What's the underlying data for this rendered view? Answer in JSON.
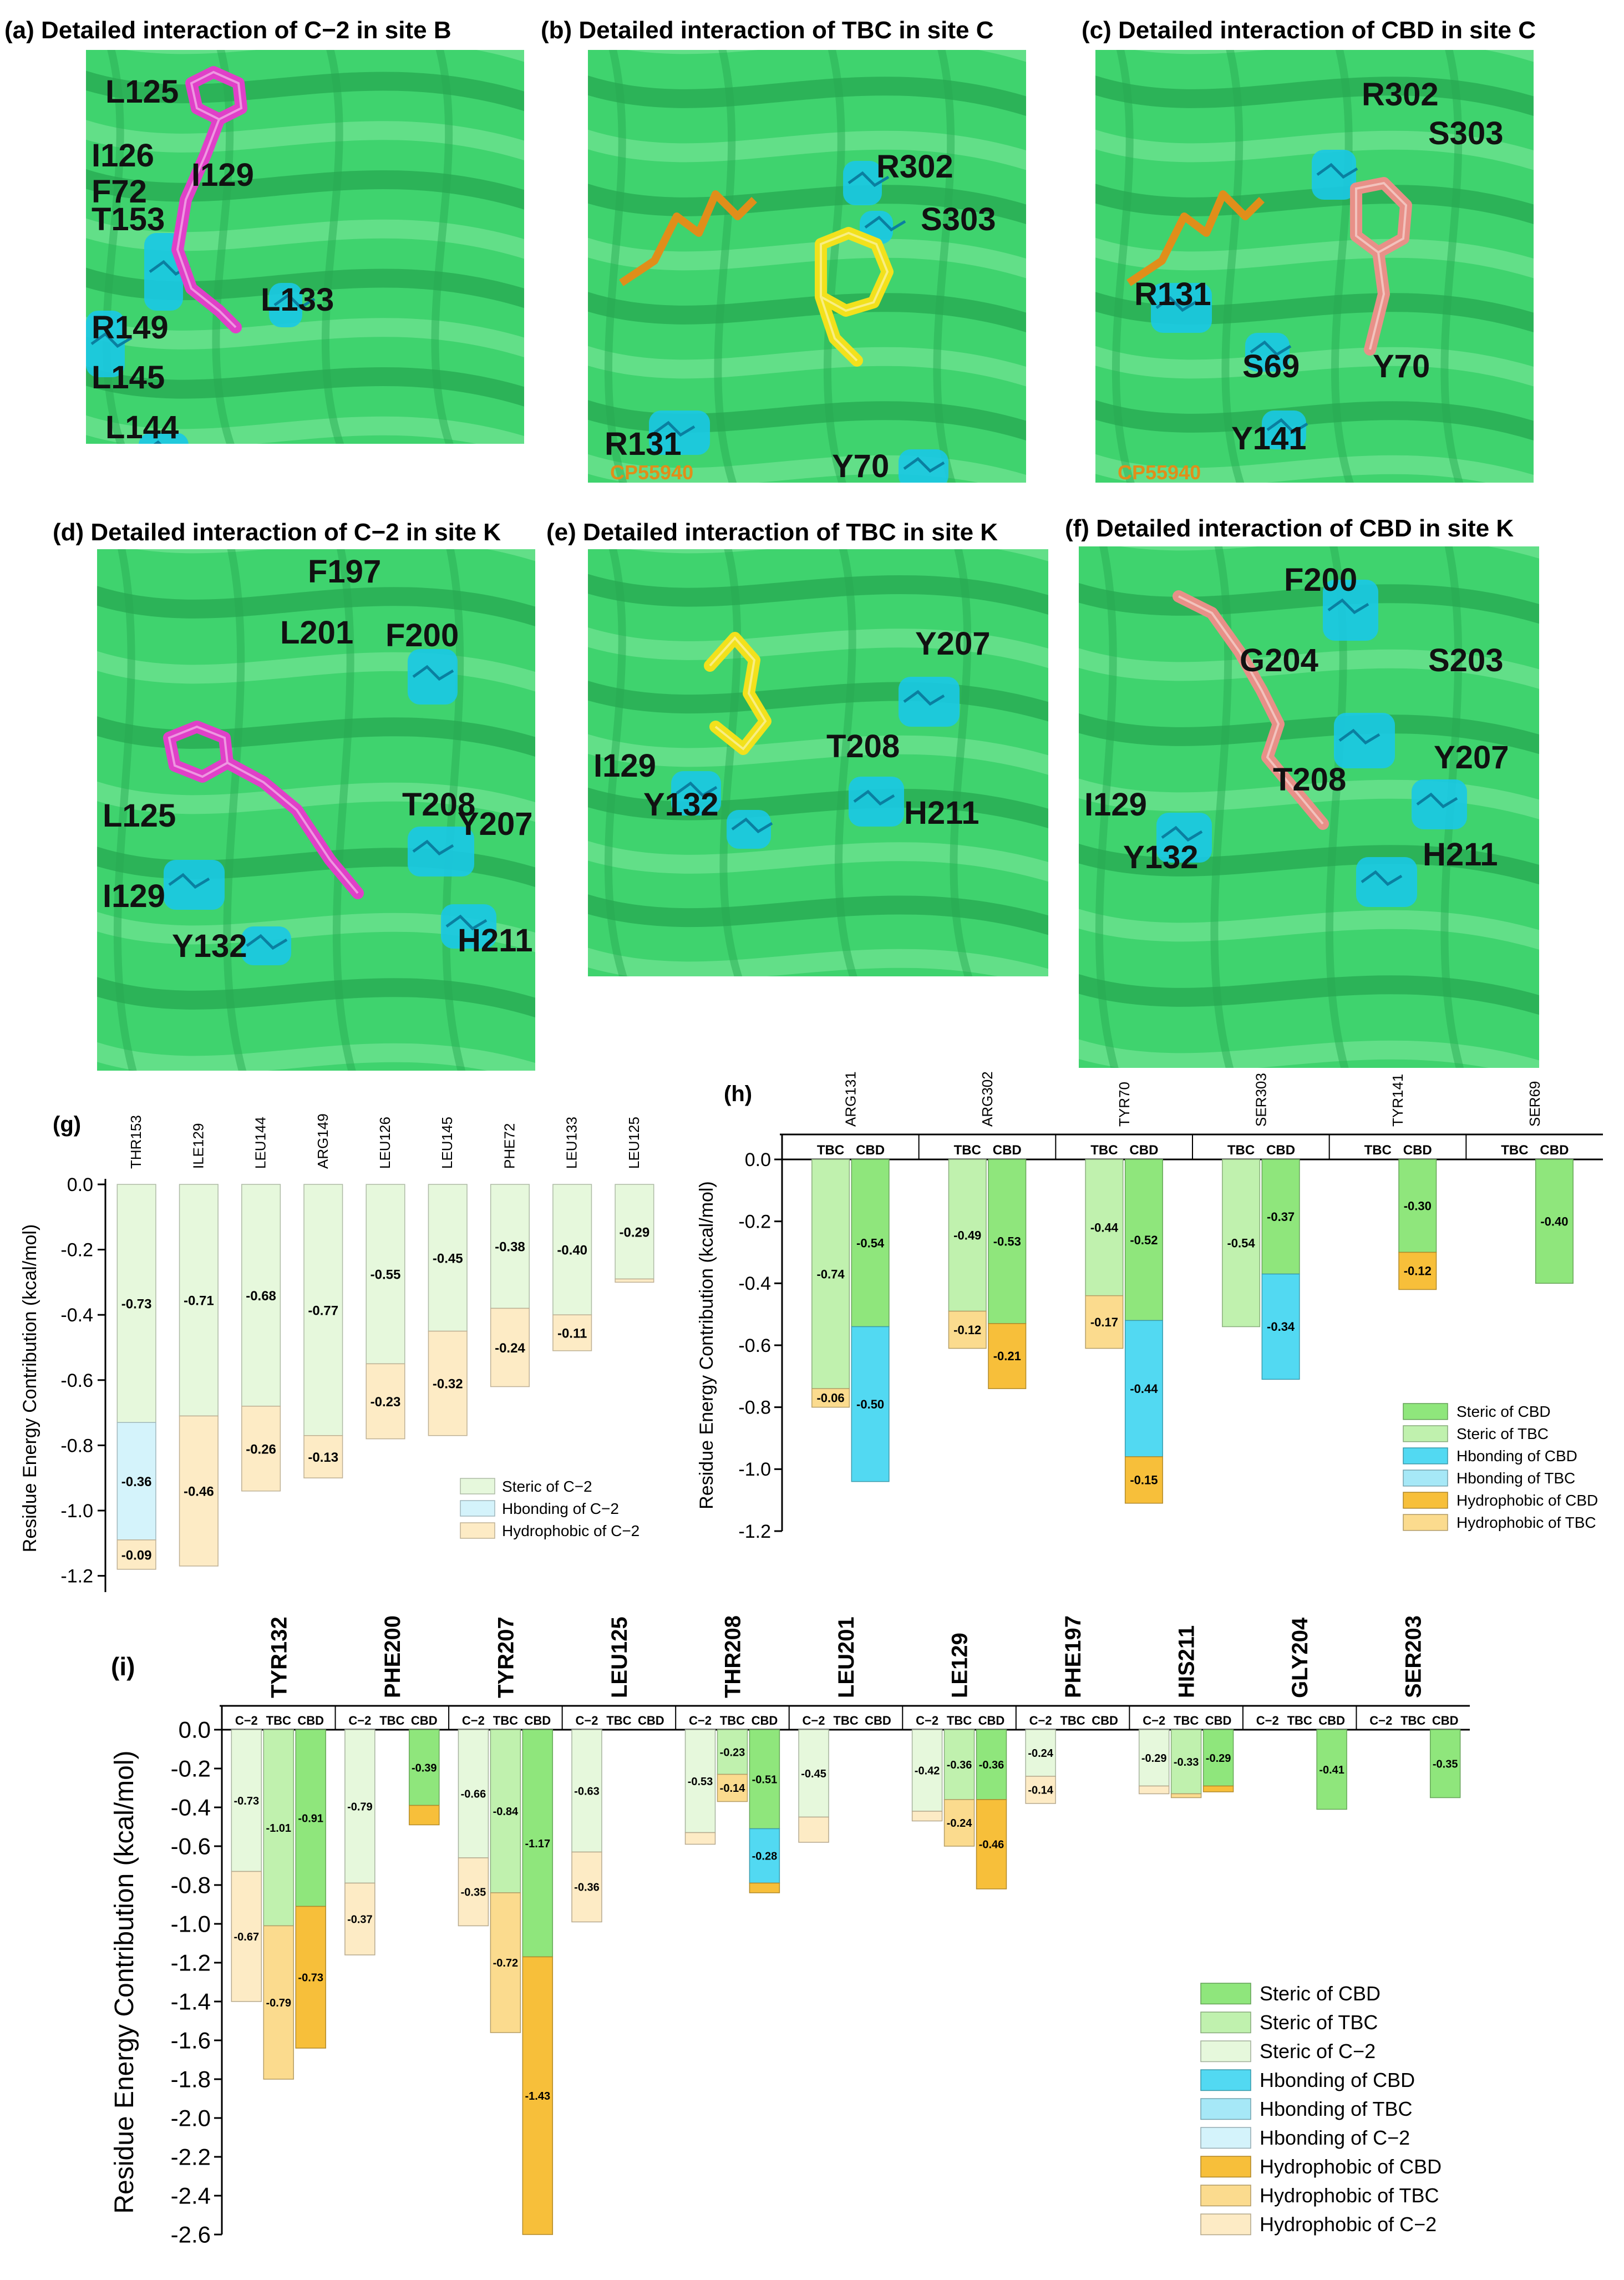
{
  "panels": {
    "a": {
      "title": "(a) Detailed interaction of C−2 in site B",
      "ligand_color": "#e040c8",
      "labels": [
        "L125",
        "I126",
        "F72",
        "I129",
        "T153",
        "R149",
        "L133",
        "L145",
        "L144"
      ]
    },
    "b": {
      "title": "(b) Detailed interaction of TBC in site C",
      "ligand_color": "#f2e11c",
      "labels": [
        "R302",
        "S303",
        "R131",
        "Y70"
      ],
      "cp_label": "CP55940"
    },
    "c": {
      "title": "(c) Detailed interaction of CBD in site C",
      "ligand_color": "#e89088",
      "labels": [
        "R302",
        "S303",
        "R131",
        "S69",
        "Y70",
        "Y141"
      ],
      "cp_label": "CP55940"
    },
    "d": {
      "title": "(d) Detailed interaction of C−2 in site K",
      "ligand_color": "#e040c8",
      "labels": [
        "F197",
        "L201",
        "F200",
        "L125",
        "T208",
        "Y207",
        "I129",
        "Y132",
        "H211"
      ]
    },
    "e": {
      "title": "(e) Detailed interaction of TBC in site K",
      "ligand_color": "#f2e11c",
      "labels": [
        "Y207",
        "I129",
        "T208",
        "Y132",
        "H211"
      ]
    },
    "f": {
      "title": "(f) Detailed interaction of CBD in site K",
      "ligand_color": "#e89088",
      "labels": [
        "F200",
        "G204",
        "S203",
        "Y207",
        "I129",
        "T208",
        "Y132",
        "H211"
      ]
    }
  },
  "colors": {
    "helix": "#3fd36e",
    "helix_dark": "#27a852",
    "helix_light": "#6fe392",
    "cyan": "#19c8e6",
    "steric_cbd": "#8fe67c",
    "steric_tbc": "#c0f1ae",
    "steric_c2": "#e6f8dc",
    "hb_cbd": "#52d9f2",
    "hb_tbc": "#a6e8f7",
    "hb_c2": "#d4f3fb",
    "hyd_cbd": "#f7bf3a",
    "hyd_tbc": "#fbdb8e",
    "hyd_c2": "#fdebc5",
    "cp": "#e08e1a"
  },
  "chart_data": [
    {
      "id": "g",
      "panel_label": "(g)",
      "type": "stacked-bar",
      "ylabel": "Residue Energy Contribution (kcal/mol)",
      "ylim": [
        -1.25,
        0.0
      ],
      "yticks": [
        0.0,
        -0.2,
        -0.4,
        -0.6,
        -0.8,
        -1.0,
        -1.2
      ],
      "ticklabels": [
        "0.0",
        "-0.2",
        "-0.4",
        "-0.6",
        "-0.8",
        "-1.0",
        "-1.2"
      ],
      "categories": [
        "THR153",
        "ILE129",
        "LEU144",
        "ARG149",
        "LEU126",
        "LEU145",
        "PHE72",
        "LEU133",
        "LEU125"
      ],
      "series": [
        {
          "name": "Steric of C−2",
          "color_key": "steric_c2",
          "values": [
            -0.73,
            -0.71,
            -0.68,
            -0.77,
            -0.55,
            -0.45,
            -0.38,
            -0.4,
            -0.29
          ],
          "labels": [
            "-0.73",
            "-0.71",
            "-0.68",
            "-0.77",
            "-0.55",
            "-0.45",
            "-0.38",
            "-0.40",
            "-0.29"
          ]
        },
        {
          "name": "Hbonding of C−2",
          "color_key": "hb_c2",
          "values": [
            -0.36,
            0,
            0,
            0,
            0,
            0,
            0,
            0,
            0
          ],
          "labels": [
            "-0.36",
            "",
            "",
            "",
            "",
            "",
            "",
            "",
            ""
          ]
        },
        {
          "name": "Hydrophobic of C−2",
          "color_key": "hyd_c2",
          "values": [
            -0.09,
            -0.46,
            -0.26,
            -0.13,
            -0.23,
            -0.32,
            -0.24,
            -0.11,
            -0.01
          ],
          "labels": [
            "-0.09",
            "-0.46",
            "-0.26",
            "-0.13",
            "-0.23",
            "-0.32",
            "-0.24",
            "-0.11",
            ""
          ]
        }
      ],
      "legend": [
        "Steric of C−2",
        "Hbonding of C−2",
        "Hydrophobic of C−2"
      ]
    },
    {
      "id": "h",
      "panel_label": "(h)",
      "type": "stacked-bar-grouped",
      "ylabel": "Residue Energy Contribution (kcal/mol)",
      "ylim": [
        -1.2,
        0.0
      ],
      "yticks": [
        0.0,
        -0.2,
        -0.4,
        -0.6,
        -0.8,
        -1.0,
        -1.2
      ],
      "ticklabels": [
        "0.0",
        "-0.2",
        "-0.4",
        "-0.6",
        "-0.8",
        "-1.0",
        "-1.2"
      ],
      "categories": [
        "ARG131",
        "ARG302",
        "TYR70",
        "SER303",
        "TYR141",
        "SER69"
      ],
      "subgroups": [
        "TBC",
        "CBD"
      ],
      "bars": [
        [
          {
            "segs": [
              [
                "steric_tbc",
                -0.74,
                "-0.74"
              ],
              [
                "hyd_tbc",
                -0.06,
                "-0.06"
              ]
            ]
          },
          {
            "segs": [
              [
                "steric_cbd",
                -0.54,
                "-0.54"
              ],
              [
                "hb_cbd",
                -0.5,
                "-0.50"
              ]
            ]
          }
        ],
        [
          {
            "segs": [
              [
                "steric_tbc",
                -0.49,
                "-0.49"
              ],
              [
                "hyd_tbc",
                -0.12,
                "-0.12"
              ]
            ]
          },
          {
            "segs": [
              [
                "steric_cbd",
                -0.53,
                "-0.53"
              ],
              [
                "hyd_cbd",
                -0.21,
                "-0.21"
              ]
            ]
          }
        ],
        [
          {
            "segs": [
              [
                "steric_tbc",
                -0.44,
                "-0.44"
              ],
              [
                "hyd_tbc",
                -0.17,
                "-0.17"
              ]
            ]
          },
          {
            "segs": [
              [
                "steric_cbd",
                -0.52,
                "-0.52"
              ],
              [
                "hb_cbd",
                -0.44,
                "-0.44"
              ],
              [
                "hyd_cbd",
                -0.15,
                "-0.15"
              ]
            ]
          }
        ],
        [
          {
            "segs": [
              [
                "steric_tbc",
                -0.54,
                "-0.54"
              ]
            ]
          },
          {
            "segs": [
              [
                "steric_cbd",
                -0.37,
                "-0.37"
              ],
              [
                "hb_cbd",
                -0.34,
                "-0.34"
              ]
            ]
          }
        ],
        [
          {
            "segs": []
          },
          {
            "segs": [
              [
                "steric_cbd",
                -0.3,
                "-0.30"
              ],
              [
                "hyd_cbd",
                -0.12,
                "-0.12"
              ]
            ]
          }
        ],
        [
          {
            "segs": []
          },
          {
            "segs": [
              [
                "steric_cbd",
                -0.4,
                "-0.40"
              ]
            ]
          }
        ]
      ],
      "legend": [
        [
          "Steric of CBD",
          "steric_cbd"
        ],
        [
          "Steric of TBC",
          "steric_tbc"
        ],
        [
          "Hbonding of CBD",
          "hb_cbd"
        ],
        [
          "Hbonding of TBC",
          "hb_tbc"
        ],
        [
          "Hydrophobic of CBD",
          "hyd_cbd"
        ],
        [
          "Hydrophobic of TBC",
          "hyd_tbc"
        ]
      ]
    },
    {
      "id": "i",
      "panel_label": "(i)",
      "type": "stacked-bar-grouped",
      "ylabel": "Residue Energy Contribution (kcal/mol)",
      "ylim": [
        -2.6,
        0.0
      ],
      "yticks": [
        0.0,
        -0.2,
        -0.4,
        -0.6,
        -0.8,
        -1.0,
        -1.2,
        -1.4,
        -1.6,
        -1.8,
        -2.0,
        -2.2,
        -2.4,
        -2.6
      ],
      "ticklabels": [
        "0.0",
        "-0.2",
        "-0.4",
        "-0.6",
        "-0.8",
        "-1.0",
        "-1.2",
        "-1.4",
        "-1.6",
        "-1.8",
        "-2.0",
        "-2.2",
        "-2.4",
        "-2.6"
      ],
      "categories": [
        "TYR132",
        "PHE200",
        "TYR207",
        "LEU125",
        "THR208",
        "LEU201",
        "LE129",
        "PHE197",
        "HIS211",
        "GLY204",
        "SER203"
      ],
      "subgroups": [
        "C−2",
        "TBC",
        "CBD"
      ],
      "bars": [
        [
          {
            "segs": [
              [
                "steric_c2",
                -0.73,
                "-0.73"
              ],
              [
                "hyd_c2",
                -0.67,
                "-0.67"
              ]
            ]
          },
          {
            "segs": [
              [
                "steric_tbc",
                -1.01,
                "-1.01"
              ],
              [
                "hyd_tbc",
                -0.79,
                "-0.79"
              ]
            ]
          },
          {
            "segs": [
              [
                "steric_cbd",
                -0.91,
                "-0.91"
              ],
              [
                "hyd_cbd",
                -0.73,
                "-0.73"
              ]
            ]
          }
        ],
        [
          {
            "segs": [
              [
                "steric_c2",
                -0.79,
                "-0.79"
              ],
              [
                "hyd_c2",
                -0.37,
                "-0.37"
              ]
            ]
          },
          {
            "segs": []
          },
          {
            "segs": [
              [
                "steric_cbd",
                -0.39,
                "-0.39"
              ],
              [
                "hyd_cbd",
                -0.1,
                ""
              ]
            ]
          }
        ],
        [
          {
            "segs": [
              [
                "steric_c2",
                -0.66,
                "-0.66"
              ],
              [
                "hyd_c2",
                -0.35,
                "-0.35"
              ]
            ]
          },
          {
            "segs": [
              [
                "steric_tbc",
                -0.84,
                "-0.84"
              ],
              [
                "hyd_tbc",
                -0.72,
                "-0.72"
              ]
            ]
          },
          {
            "segs": [
              [
                "steric_cbd",
                -1.17,
                "-1.17"
              ],
              [
                "hyd_cbd",
                -1.43,
                "-1.43"
              ]
            ]
          }
        ],
        [
          {
            "segs": [
              [
                "steric_c2",
                -0.63,
                "-0.63"
              ],
              [
                "hyd_c2",
                -0.36,
                "-0.36"
              ]
            ]
          },
          {
            "segs": []
          },
          {
            "segs": []
          }
        ],
        [
          {
            "segs": [
              [
                "steric_c2",
                -0.53,
                "-0.53"
              ],
              [
                "hyd_c2",
                -0.06,
                ""
              ]
            ]
          },
          {
            "segs": [
              [
                "steric_tbc",
                -0.23,
                "-0.23"
              ],
              [
                "hyd_tbc",
                -0.14,
                "-0.14"
              ]
            ]
          },
          {
            "segs": [
              [
                "steric_cbd",
                -0.51,
                "-0.51"
              ],
              [
                "hb_cbd",
                -0.28,
                "-0.28"
              ],
              [
                "hyd_cbd",
                -0.05,
                ""
              ]
            ]
          }
        ],
        [
          {
            "segs": [
              [
                "steric_c2",
                -0.45,
                "-0.45"
              ],
              [
                "hyd_c2",
                -0.13,
                ""
              ]
            ]
          },
          {
            "segs": []
          },
          {
            "segs": []
          }
        ],
        [
          {
            "segs": [
              [
                "steric_c2",
                -0.42,
                "-0.42"
              ],
              [
                "hyd_c2",
                -0.05,
                ""
              ]
            ]
          },
          {
            "segs": [
              [
                "steric_tbc",
                -0.36,
                "-0.36"
              ],
              [
                "hyd_tbc",
                -0.24,
                "-0.24"
              ]
            ]
          },
          {
            "segs": [
              [
                "steric_cbd",
                -0.36,
                "-0.36"
              ],
              [
                "hyd_cbd",
                -0.46,
                "-0.46"
              ]
            ]
          }
        ],
        [
          {
            "segs": [
              [
                "steric_c2",
                -0.24,
                "-0.24"
              ],
              [
                "hyd_c2",
                -0.14,
                "-0.14"
              ]
            ]
          },
          {
            "segs": []
          },
          {
            "segs": []
          }
        ],
        [
          {
            "segs": [
              [
                "steric_c2",
                -0.29,
                "-0.29"
              ],
              [
                "hyd_c2",
                -0.04,
                ""
              ]
            ]
          },
          {
            "segs": [
              [
                "steric_tbc",
                -0.33,
                "-0.33"
              ],
              [
                "hyd_tbc",
                -0.02,
                ""
              ]
            ]
          },
          {
            "segs": [
              [
                "steric_cbd",
                -0.29,
                "-0.29"
              ],
              [
                "hyd_cbd",
                -0.03,
                ""
              ]
            ]
          }
        ],
        [
          {
            "segs": []
          },
          {
            "segs": []
          },
          {
            "segs": [
              [
                "steric_cbd",
                -0.41,
                "-0.41"
              ]
            ]
          }
        ],
        [
          {
            "segs": []
          },
          {
            "segs": []
          },
          {
            "segs": [
              [
                "steric_cbd",
                -0.35,
                "-0.35"
              ]
            ]
          }
        ]
      ],
      "legend": [
        [
          "Steric of CBD",
          "steric_cbd"
        ],
        [
          "Steric of TBC",
          "steric_tbc"
        ],
        [
          "Steric of C−2",
          "steric_c2"
        ],
        [
          "Hbonding of CBD",
          "hb_cbd"
        ],
        [
          "Hbonding of TBC",
          "hb_tbc"
        ],
        [
          "Hbonding of C−2",
          "hb_c2"
        ],
        [
          "Hydrophobic of CBD",
          "hyd_cbd"
        ],
        [
          "Hydrophobic of TBC",
          "hyd_tbc"
        ],
        [
          "Hydrophobic of C−2",
          "hyd_c2"
        ]
      ]
    }
  ]
}
